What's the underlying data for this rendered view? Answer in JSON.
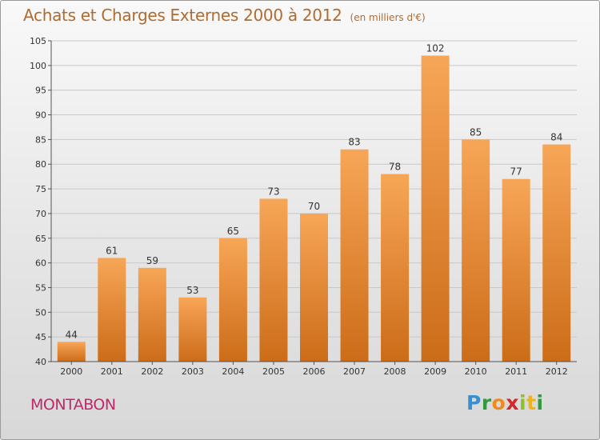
{
  "title": "Achats et Charges Externes 2000 à 2012",
  "unit": "(en milliers d'€)",
  "town": "MONTABON",
  "logo_text": "Proxiti",
  "chart_data": {
    "type": "bar",
    "title": "Achats et Charges Externes 2000 à 2012",
    "subtitle": "(en milliers d'€)",
    "categories": [
      "2000",
      "2001",
      "2002",
      "2003",
      "2004",
      "2005",
      "2006",
      "2007",
      "2008",
      "2009",
      "2010",
      "2011",
      "2012"
    ],
    "values": [
      44,
      61,
      59,
      53,
      65,
      73,
      70,
      83,
      78,
      102,
      85,
      77,
      84
    ],
    "ylim": [
      40,
      105
    ],
    "yticks": [
      40,
      45,
      50,
      55,
      60,
      65,
      70,
      75,
      80,
      85,
      90,
      95,
      100,
      105
    ],
    "grid": true,
    "xlabel": "",
    "ylabel": "",
    "colors": {
      "bar_top": "#f7a657",
      "bar_bottom": "#cc6c18",
      "grid": "#c8c8c8",
      "axis": "#555555",
      "text": "#333333"
    }
  }
}
